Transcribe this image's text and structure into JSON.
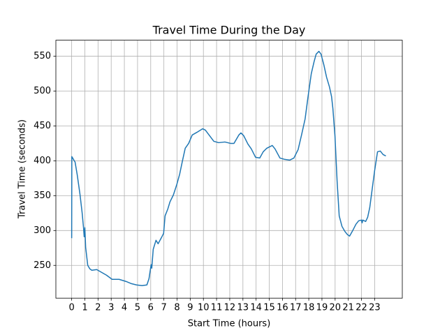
{
  "chart_data": {
    "type": "line",
    "title": "Travel Time During the Day",
    "x_label": "Start Time (hours)",
    "y_label": "Travel Time (seconds)",
    "x": [
      0,
      0.01,
      0.26,
      0.42,
      0.63,
      0.79,
      0.9,
      0.95,
      1.0,
      1.06,
      1.22,
      1.38,
      1.53,
      1.9,
      2.27,
      2.64,
      3.07,
      3.6,
      4.12,
      4.5,
      4.92,
      5.34,
      5.71,
      5.87,
      6.03,
      6.08,
      6.19,
      6.4,
      6.56,
      6.82,
      6.98,
      7.09,
      7.3,
      7.46,
      7.72,
      7.98,
      8.2,
      8.41,
      8.62,
      8.88,
      9.15,
      9.52,
      9.94,
      10.15,
      10.47,
      10.79,
      11.16,
      11.63,
      12.06,
      12.32,
      12.69,
      12.85,
      13.06,
      13.38,
      13.64,
      13.96,
      14.28,
      14.54,
      14.81,
      15.23,
      15.44,
      15.81,
      16.18,
      16.55,
      16.87,
      17.19,
      17.45,
      17.72,
      17.93,
      18.19,
      18.4,
      18.56,
      18.77,
      18.93,
      19.14,
      19.35,
      19.57,
      19.73,
      19.83,
      19.99,
      20.15,
      20.31,
      20.52,
      20.73,
      20.94,
      21.1,
      21.31,
      21.58,
      21.79,
      22.0,
      22.05,
      22.1,
      22.32,
      22.47,
      22.63,
      22.79,
      23.0,
      23.22,
      23.43,
      23.64,
      23.85
    ],
    "values": [
      289,
      406,
      398,
      380,
      352,
      326,
      304,
      291,
      304,
      276,
      250,
      245,
      243,
      244,
      240,
      236,
      230,
      230,
      227,
      224,
      222,
      221,
      222,
      231,
      251,
      246,
      273,
      286,
      281,
      290,
      296,
      321,
      331,
      341,
      351,
      366,
      381,
      400,
      418,
      425,
      437,
      441,
      446,
      444,
      436,
      428,
      426,
      427,
      425,
      425,
      437,
      440,
      436,
      424,
      417,
      405,
      404,
      413,
      418,
      422,
      417,
      404,
      402,
      401,
      404,
      416,
      437,
      460,
      490,
      525,
      542,
      553,
      557,
      553,
      538,
      520,
      506,
      492,
      475,
      435,
      371,
      321,
      306,
      299,
      294,
      292,
      299,
      309,
      314,
      315,
      311,
      315,
      313,
      319,
      333,
      356,
      386,
      413,
      414,
      409,
      407
    ],
    "color": "#1f77b4",
    "xlim": [
      -1.2,
      25.1
    ],
    "xticks": [
      0,
      1,
      2,
      3,
      4,
      5,
      6,
      7,
      8,
      9,
      10,
      11,
      12,
      13,
      14,
      15,
      16,
      17,
      18,
      19,
      20,
      21,
      22,
      23
    ],
    "ylim": [
      203,
      573
    ],
    "yticks": [
      250,
      300,
      350,
      400,
      450,
      500,
      550
    ],
    "grid": true
  }
}
